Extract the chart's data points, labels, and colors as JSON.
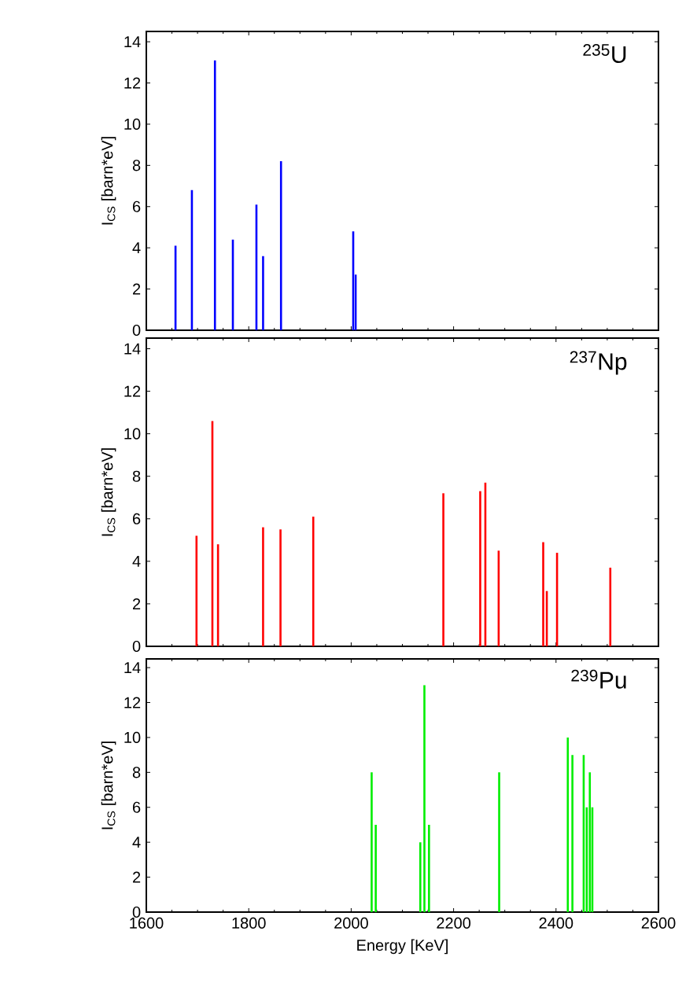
{
  "chart_data": [
    {
      "type": "bar",
      "title": "$^{235}$U",
      "ylabel": "I$_{CS}$ [barn*eV]",
      "color": "#0000ff",
      "xlim": [
        1600,
        2600
      ],
      "xticks": [
        1600,
        1800,
        2000,
        2200,
        2400,
        2600
      ],
      "ylim": [
        0,
        14.5
      ],
      "yticks": [
        0,
        2,
        4,
        6,
        8,
        10,
        12,
        14
      ],
      "tick_labels": "y",
      "x": [
        1657,
        1689,
        1734,
        1769,
        1815,
        1828,
        1863,
        2004,
        2009
      ],
      "values": [
        4.1,
        6.8,
        13.1,
        4.4,
        6.1,
        3.6,
        8.2,
        4.8,
        2.7
      ]
    },
    {
      "type": "bar",
      "title": "$^{237}$Np",
      "ylabel": "I$_{CS}$ [barn*eV]",
      "color": "#ff0000",
      "xlim": [
        1600,
        2600
      ],
      "xticks": [
        1600,
        1800,
        2000,
        2200,
        2400,
        2600
      ],
      "ylim": [
        0,
        14.5
      ],
      "yticks": [
        0,
        2,
        4,
        6,
        8,
        10,
        12,
        14
      ],
      "tick_labels": "y",
      "x": [
        1698,
        1729,
        1740,
        1828,
        1862,
        1926,
        2180,
        2252,
        2262,
        2288,
        2375,
        2382,
        2402,
        2506
      ],
      "values": [
        5.2,
        10.6,
        4.8,
        5.6,
        5.5,
        6.1,
        7.2,
        7.3,
        7.7,
        4.5,
        4.9,
        2.6,
        4.4,
        3.7
      ]
    },
    {
      "type": "bar",
      "title": "$^{239}$Pu",
      "ylabel": "I$_{CS}$ [barn*eV]",
      "xlabel": "Energy [KeV]",
      "color": "#00ee00",
      "xlim": [
        1600,
        2600
      ],
      "xticks": [
        1600,
        1800,
        2000,
        2200,
        2400,
        2600
      ],
      "ylim": [
        0,
        14.5
      ],
      "yticks": [
        0,
        2,
        4,
        6,
        8,
        10,
        12,
        14
      ],
      "x": [
        2040,
        2048,
        2135,
        2143,
        2152,
        2289,
        2423,
        2432,
        2454,
        2460,
        2466,
        2471
      ],
      "values": [
        8,
        5,
        4,
        13,
        5,
        8,
        10,
        9,
        9,
        6,
        8,
        6
      ]
    }
  ]
}
